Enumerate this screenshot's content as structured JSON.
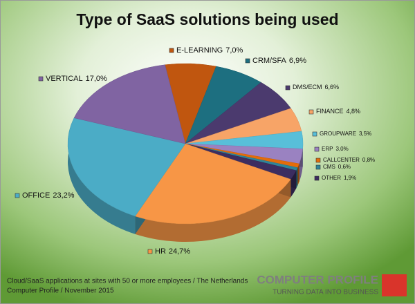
{
  "chart_data": {
    "type": "pie3d",
    "title": "Type of SaaS solutions being used",
    "categories": [
      "E-LEARNING",
      "CRM/SFA",
      "DMS/ECM",
      "FINANCE",
      "GROUPWARE",
      "ERP",
      "CALLCENTER",
      "CMS",
      "OTHER",
      "HR",
      "OFFICE",
      "VERTICAL"
    ],
    "values": [
      7.0,
      6.9,
      6.6,
      4.8,
      3.5,
      3.0,
      0.8,
      0.6,
      1.9,
      24.7,
      23.2,
      17.0
    ],
    "value_labels": [
      "7,0%",
      "6,9%",
      "6,6%",
      "4,8%",
      "3,5%",
      "3,0%",
      "0,8%",
      "0,6%",
      "1,9%",
      "24,7%",
      "23,2%",
      "17,0%"
    ],
    "colors": [
      "#c0560f",
      "#1d6f80",
      "#4b3a6e",
      "#f7a467",
      "#58bfd9",
      "#9a82c1",
      "#e46c0a",
      "#2f8599",
      "#3c2d60",
      "#f79646",
      "#4bacc6",
      "#8064a2"
    ],
    "source": [
      "Cloud/SaaS applications at sites with 50 or more employees / The Netherlands",
      "Computer Profile / November 2015"
    ],
    "logo": {
      "name": "COMPUTER PROFILE",
      "tagline": "TURNING DATA INTO BUSINESS"
    }
  }
}
